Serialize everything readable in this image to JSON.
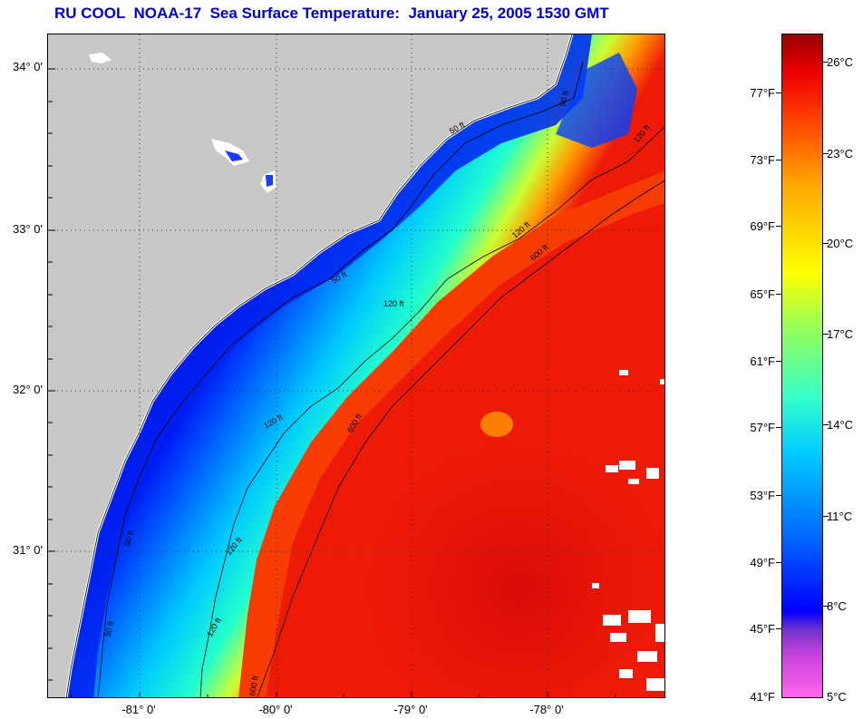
{
  "title": "RU COOL  NOAA-17  Sea Surface Temperature:  January 25, 2005 1530 GMT",
  "map": {
    "lat_labels": [
      "34° 0'",
      "33° 0'",
      "32° 0'",
      "31° 0'"
    ],
    "lon_labels": [
      "-81° 0'",
      "-80° 0'",
      "-79° 0'",
      "-78° 0'"
    ],
    "contour_labels": [
      "50 ft",
      "50 ft",
      "120 ft",
      "600 ft",
      "50 ft",
      "120 ft",
      "120 ft",
      "600 ft",
      "50 ft",
      "120 ft",
      "50 ft",
      "120 ft",
      "600 ft",
      "120 ft"
    ],
    "colors": {
      "land": "#c8c8c8",
      "ocean_warm": "#ee1a08",
      "ocean_cold": "#0000ee"
    }
  },
  "colorbar": {
    "fahrenheit": [
      "77°F",
      "73°F",
      "69°F",
      "65°F",
      "61°F",
      "57°F",
      "53°F",
      "49°F",
      "45°F",
      "41°F"
    ],
    "celsius": [
      "26°C",
      "23°C",
      "20°C",
      "17°C",
      "14°C",
      "11°C",
      "8°C",
      "5°C"
    ]
  }
}
